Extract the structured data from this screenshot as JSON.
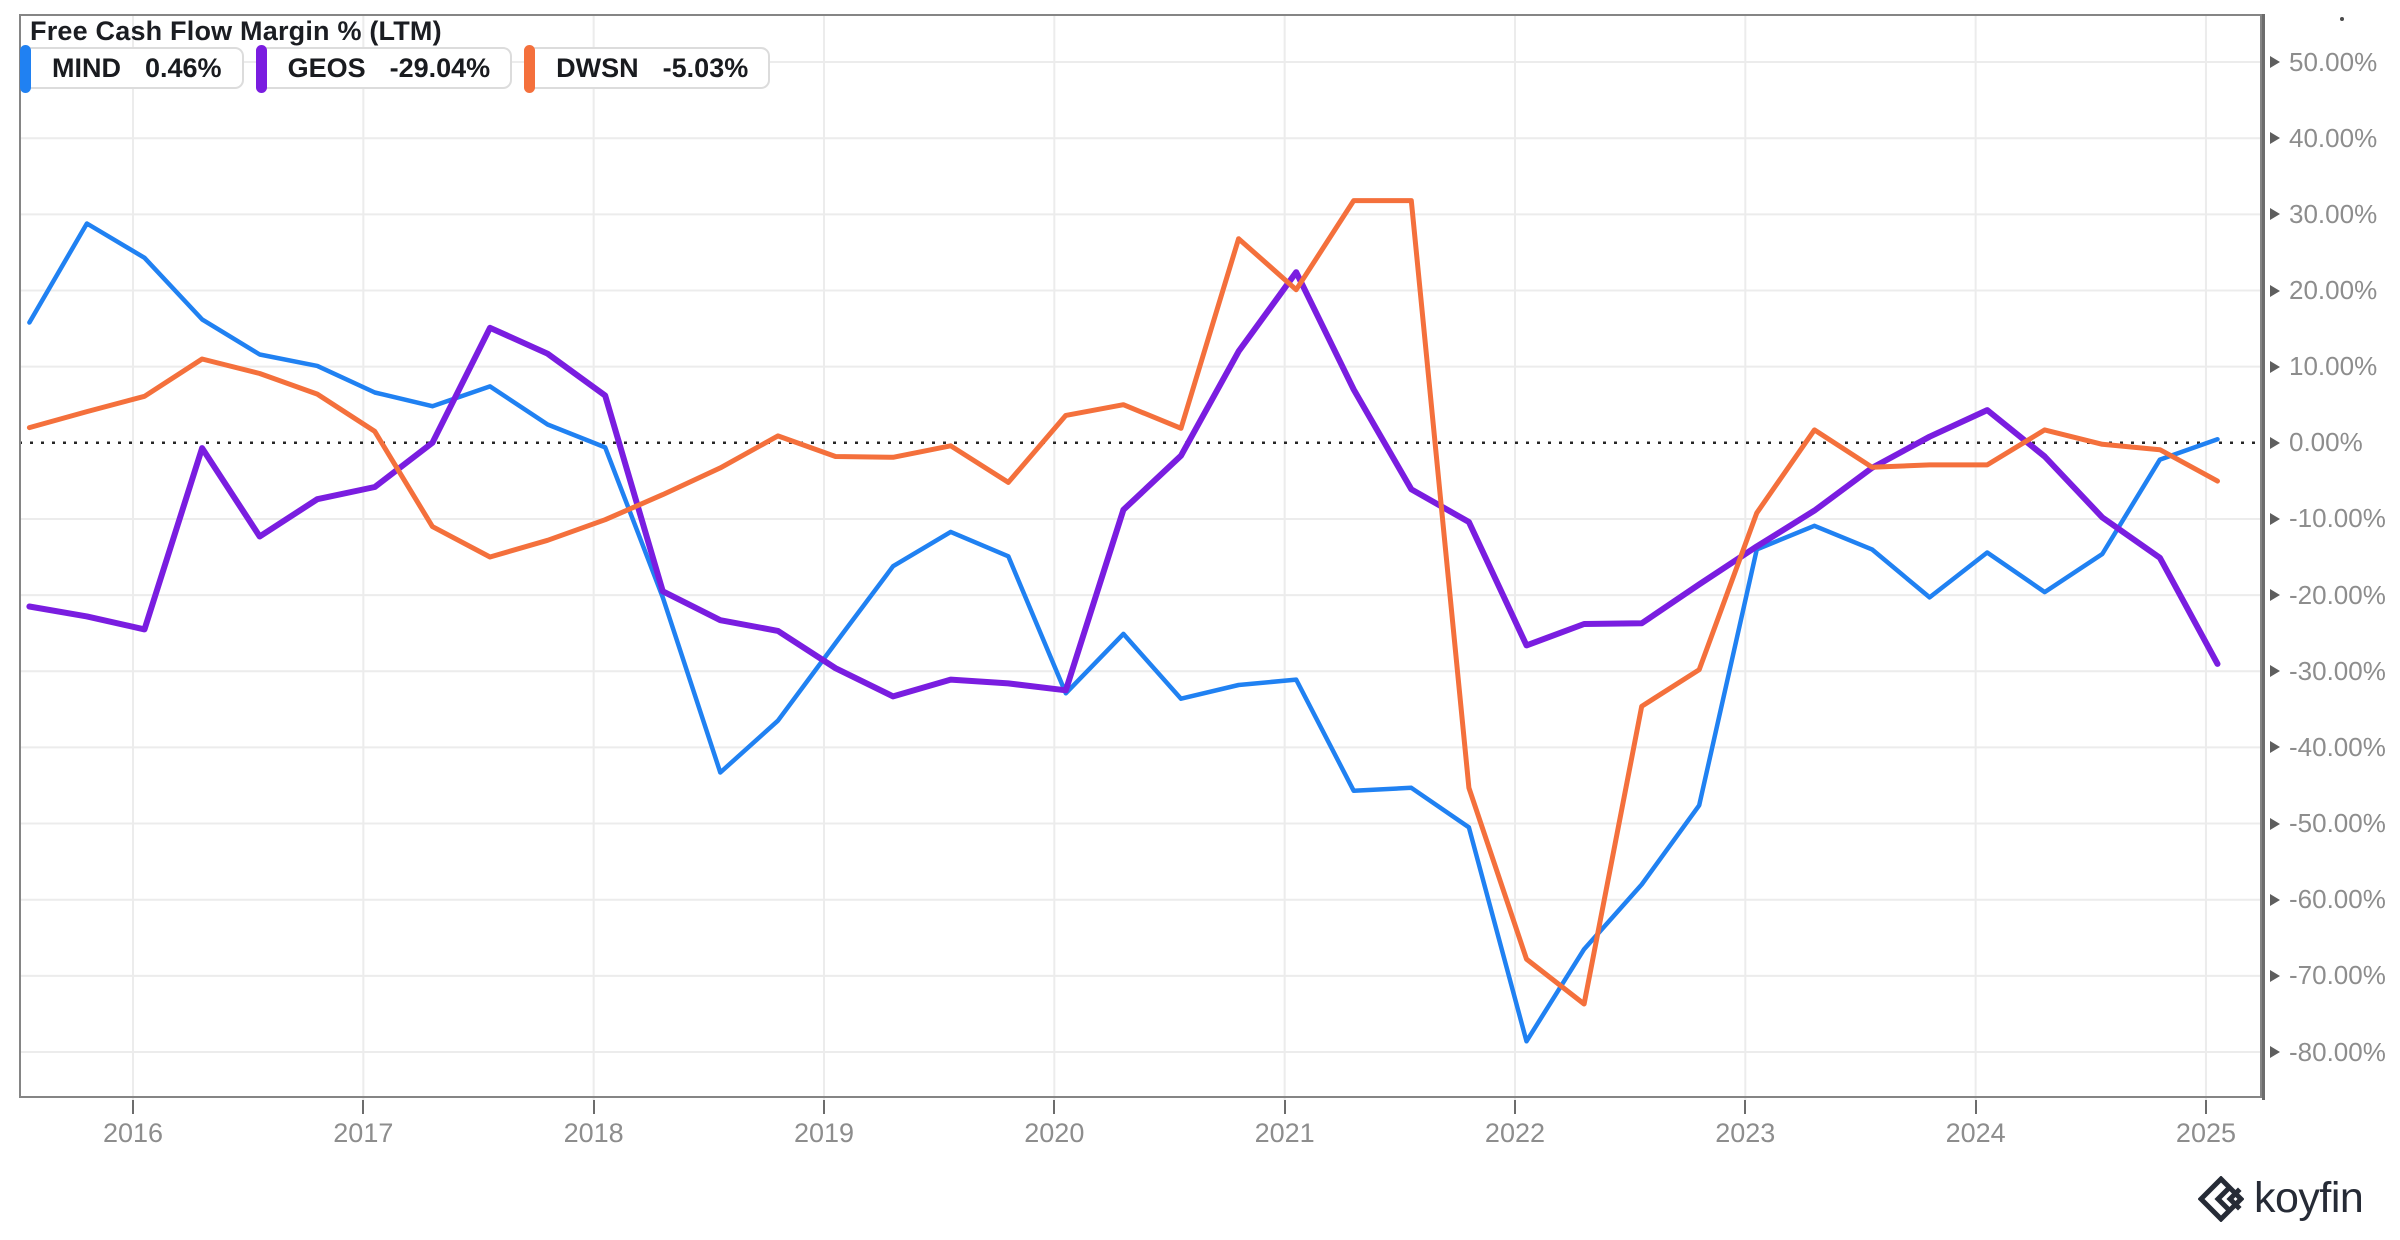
{
  "header": {
    "title": "Free Cash Flow Margin % (LTM)"
  },
  "legend": {
    "items": [
      {
        "ticker": "MIND",
        "value": "0.46%",
        "color": "#2081F2"
      },
      {
        "ticker": "GEOS",
        "value": "-29.04%",
        "color": "#7A1DE0"
      },
      {
        "ticker": "DWSN",
        "value": "-5.03%",
        "color": "#F4703C"
      }
    ]
  },
  "watermark": {
    "brand": "koyfin"
  },
  "chart_data": {
    "type": "line",
    "title": "Free Cash Flow Margin % (LTM)",
    "unit": "percent",
    "grid": "on",
    "legend_position": "top-left",
    "x_axis": {
      "ticks": [
        2016,
        2017,
        2018,
        2019,
        2020,
        2021,
        2022,
        2023,
        2024,
        2025
      ]
    },
    "y_axis": {
      "values": [
        50,
        40,
        30,
        20,
        10,
        0,
        -10,
        -20,
        -30,
        -40,
        -50,
        -60,
        -70,
        -80
      ],
      "labels": [
        "50.00%",
        "40.00%",
        "30.00%",
        "20.00%",
        "10.00%",
        "0.00%",
        "-10.00%",
        "-20.00%",
        "-30.00%",
        "-40.00%",
        "-50.00%",
        "-60.00%",
        "-70.00%",
        "-80.00%"
      ],
      "zero_line": "dotted"
    },
    "x": [
      2015.55,
      2015.8,
      2016.05,
      2016.3,
      2016.55,
      2016.8,
      2017.05,
      2017.3,
      2017.55,
      2017.8,
      2018.05,
      2018.3,
      2018.55,
      2018.8,
      2019.05,
      2019.3,
      2019.55,
      2019.8,
      2020.05,
      2020.3,
      2020.55,
      2020.8,
      2021.05,
      2021.3,
      2021.55,
      2021.8,
      2022.05,
      2022.3,
      2022.55,
      2022.8,
      2023.05,
      2023.3,
      2023.55,
      2023.8,
      2024.05,
      2024.3,
      2024.55,
      2024.8,
      2025.05
    ],
    "series": [
      {
        "name": "MIND",
        "color": "#2081F2",
        "width": 4.5,
        "values": [
          15.8,
          28.8,
          24.3,
          16.2,
          11.6,
          10.1,
          6.6,
          4.8,
          7.4,
          2.4,
          -0.6,
          -20.3,
          -43.3,
          -36.5,
          -26.3,
          -16.2,
          -11.7,
          -14.9,
          -32.9,
          -25.1,
          -33.6,
          -31.8,
          -31.1,
          -45.7,
          -45.3,
          -50.5,
          -78.6,
          -66.5,
          -58.0,
          -47.6,
          -14.0,
          -10.9,
          -14.0,
          -20.3,
          -14.4,
          -19.6,
          -14.6,
          -2.2,
          0.46
        ]
      },
      {
        "name": "GEOS",
        "color": "#7A1DE0",
        "width": 6,
        "values": [
          -21.5,
          -22.8,
          -24.5,
          -0.7,
          -12.3,
          -7.4,
          -5.8,
          0.0,
          15.1,
          11.7,
          6.2,
          -19.5,
          -23.3,
          -24.7,
          -29.6,
          -33.3,
          -31.1,
          -31.6,
          -32.5,
          -8.8,
          -1.7,
          12.0,
          22.4,
          7.0,
          -6.1,
          -10.4,
          -26.6,
          -23.8,
          -23.7,
          -18.6,
          -13.6,
          -8.9,
          -3.3,
          0.8,
          4.3,
          -1.8,
          -9.8,
          -15.1,
          -29.04
        ]
      },
      {
        "name": "DWSN",
        "color": "#F4703C",
        "width": 5,
        "values": [
          2.0,
          4.1,
          6.1,
          11.0,
          9.1,
          6.4,
          1.5,
          -11.0,
          -15.0,
          -12.8,
          -10.1,
          -6.8,
          -3.3,
          0.9,
          -1.8,
          -1.9,
          -0.4,
          -5.2,
          3.6,
          5.0,
          1.9,
          26.8,
          20.1,
          31.8,
          31.8,
          -45.3,
          -67.8,
          -73.7,
          -34.6,
          -29.8,
          -9.2,
          1.7,
          -3.2,
          -2.9,
          -2.9,
          1.7,
          -0.2,
          -0.9,
          -5.03
        ]
      }
    ]
  }
}
